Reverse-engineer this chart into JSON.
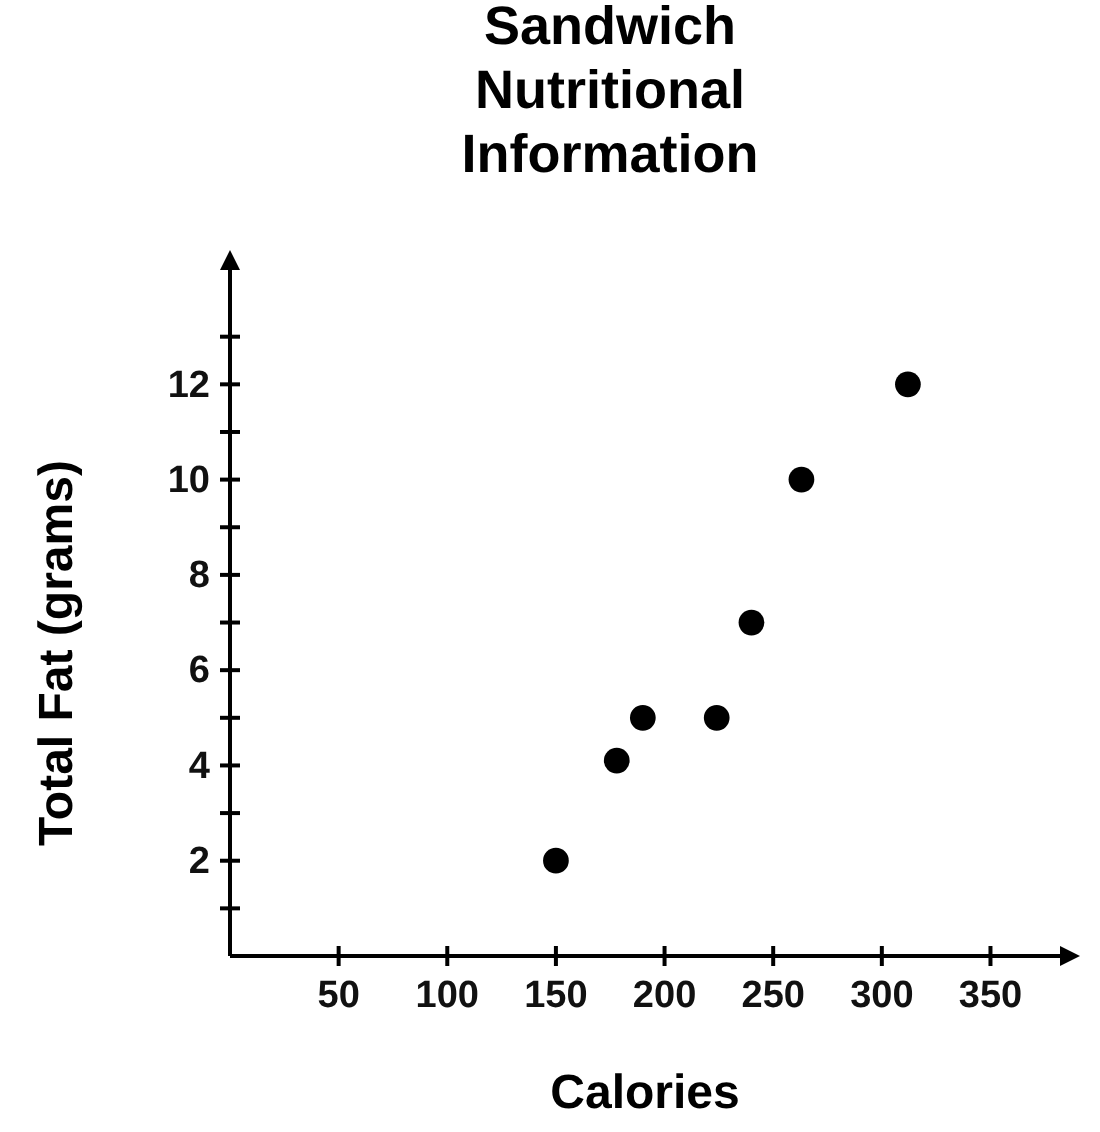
{
  "chart_data": {
    "type": "scatter",
    "title": "Sandwich Nutritional Information",
    "xlabel": "Calories",
    "ylabel": "Total Fat (grams)",
    "x": [
      150,
      178,
      190,
      224,
      240,
      263,
      312
    ],
    "values": [
      2,
      4.1,
      5,
      5,
      7,
      10,
      12
    ],
    "color": "#000000",
    "marker": "circle",
    "grid": false,
    "xlim": [
      0,
      382
    ],
    "xticks": [
      50,
      100,
      150,
      200,
      250,
      300,
      350
    ],
    "ylim": [
      0,
      14.4
    ],
    "yticks": [
      {
        "value": 1,
        "label": null
      },
      2,
      {
        "value": 3,
        "label": null
      },
      4,
      {
        "value": 5,
        "label": null
      },
      6,
      {
        "value": 7,
        "label": null
      },
      8,
      {
        "value": 9,
        "label": null
      },
      10,
      {
        "value": 11,
        "label": null
      },
      12,
      {
        "value": 13,
        "label": null
      }
    ]
  }
}
